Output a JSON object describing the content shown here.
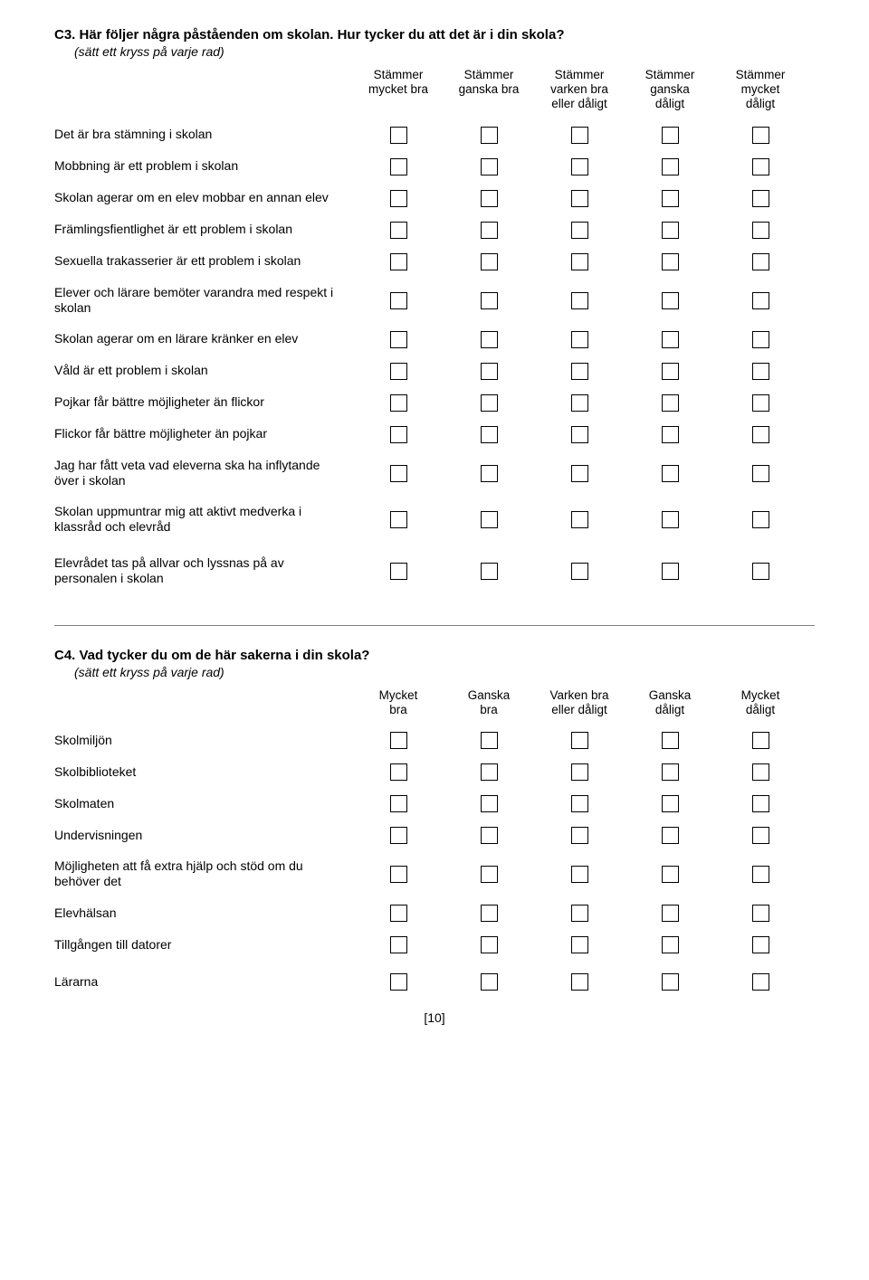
{
  "c3": {
    "title": "C3. Här följer några påståenden om skolan. Hur tycker du att det är i din skola?",
    "instruction": "(sätt ett kryss på varje rad)",
    "headers": [
      "Stämmer\nmycket bra",
      "Stämmer\nganska bra",
      "Stämmer\nvarken bra\neller dåligt",
      "Stämmer\nganska\ndåligt",
      "Stämmer\nmycket\ndåligt"
    ],
    "rows": [
      "Det är bra stämning i skolan",
      "Mobbning är ett problem i skolan",
      "Skolan agerar om en elev mobbar en annan elev",
      "Främlingsfientlighet är ett problem i skolan",
      "Sexuella trakasserier är ett problem i skolan",
      "Elever och lärare bemöter varandra med respekt i skolan",
      "Skolan agerar om en lärare kränker en elev",
      "Våld är ett problem i skolan",
      "Pojkar får bättre möjligheter än flickor",
      "Flickor får bättre möjligheter än pojkar",
      "Jag har fått veta vad eleverna ska ha inflytande över i skolan",
      "Skolan uppmuntrar mig att aktivt medverka i klassråd och elevråd",
      "Elevrådet tas på allvar och lyssnas på av personalen i skolan"
    ]
  },
  "c4": {
    "title": "C4. Vad tycker du om de här sakerna i din skola?",
    "instruction": "(sätt ett kryss på varje rad)",
    "headers": [
      "Mycket\nbra",
      "Ganska\nbra",
      "Varken bra\neller dåligt",
      "Ganska\ndåligt",
      "Mycket\ndåligt"
    ],
    "rows": [
      "Skolmiljön",
      "Skolbiblioteket",
      "Skolmaten",
      "Undervisningen",
      "Möjligheten att få extra hjälp och stöd om du behöver det",
      "Elevhälsan",
      "Tillgången till datorer",
      "Lärarna"
    ]
  },
  "page_number": "[10]"
}
